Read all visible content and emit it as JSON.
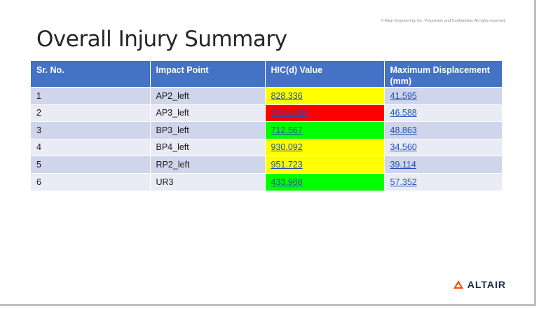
{
  "copyright": "© Altair Engineering, Inc. Proprietary and Confidential. All rights reserved.",
  "title": "Overall Injury Summary",
  "table": {
    "headers": [
      "Sr. No.",
      "Impact Point",
      "HIC(d) Value",
      "Maximum Displacement (mm)"
    ],
    "rows": [
      {
        "sr": "1",
        "impact": "AP2_left",
        "hic": "828.336",
        "hic_color": "#ffff00",
        "disp": "41.595"
      },
      {
        "sr": "2",
        "impact": "AP3_left",
        "hic": "1075.638",
        "hic_color": "#ff0000",
        "disp": "46.588"
      },
      {
        "sr": "3",
        "impact": "BP3_left",
        "hic": "712.567",
        "hic_color": "#00ff00",
        "disp": "48.863"
      },
      {
        "sr": "4",
        "impact": "BP4_left",
        "hic": "930.092",
        "hic_color": "#ffff00",
        "disp": "34.560"
      },
      {
        "sr": "5",
        "impact": "RP2_left",
        "hic": "951.723",
        "hic_color": "#ffff00",
        "disp": "39.114"
      },
      {
        "sr": "6",
        "impact": "UR3",
        "hic": "433.988",
        "hic_color": "#00ff00",
        "disp": "57.352"
      }
    ]
  },
  "logo": {
    "text": "ALTAIR",
    "icon": "altair-triangle-icon",
    "color": "#ff4d00"
  }
}
